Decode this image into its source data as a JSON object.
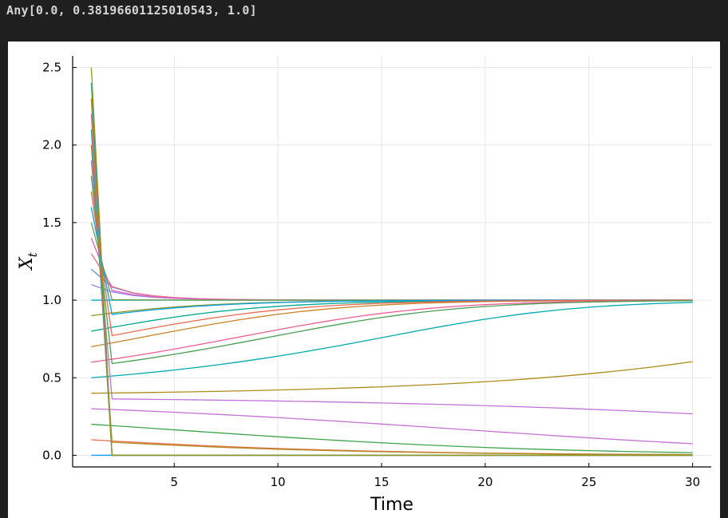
{
  "output": {
    "text": "Any[0.0, 0.38196601125010543, 1.0]"
  },
  "chart_data": {
    "type": "line",
    "title": "",
    "xlabel": "Time",
    "ylabel": "X",
    "ylabel_subscript": "t",
    "xlim": [
      0.1,
      30.9
    ],
    "ylim": [
      -0.075,
      2.575
    ],
    "xticks": [
      5,
      10,
      15,
      20,
      25,
      30
    ],
    "yticks": [
      0.0,
      0.5,
      1.0,
      1.5,
      2.0,
      2.5
    ],
    "ytick_labels": [
      "0.0",
      "0.5",
      "1.0",
      "1.5",
      "2.0",
      "2.5"
    ],
    "grid": true,
    "legend": "none",
    "x_start": 1,
    "x_end": 30,
    "fixed_points": [
      0.0,
      0.38196601125010543,
      1.0
    ],
    "initial_values": [
      0.0,
      0.1,
      0.2,
      0.3,
      0.4,
      0.5,
      0.6,
      0.7,
      0.8,
      0.9,
      1.0,
      1.1,
      1.2,
      1.3,
      1.4,
      1.5,
      1.6,
      1.7,
      1.8,
      1.9,
      2.0,
      2.1,
      2.2,
      2.3,
      2.4,
      2.5
    ],
    "colors": [
      "#009AFA",
      "#E36F47",
      "#3EA44E",
      "#C371D2",
      "#AC8D18",
      "#00A9AD",
      "#ED5E93",
      "#C68225",
      "#00A98D",
      "#8E971D",
      "#00A9CD",
      "#9B7FE9",
      "#618DF6",
      "#F16C85",
      "#DC63BB",
      "#6EA147",
      "#0AA0E6",
      "#E66A50",
      "#4A9F55",
      "#BD73D5",
      "#B38A20",
      "#1EA6A8",
      "#EB6294",
      "#C08030",
      "#24A58F",
      "#96981E"
    ]
  }
}
